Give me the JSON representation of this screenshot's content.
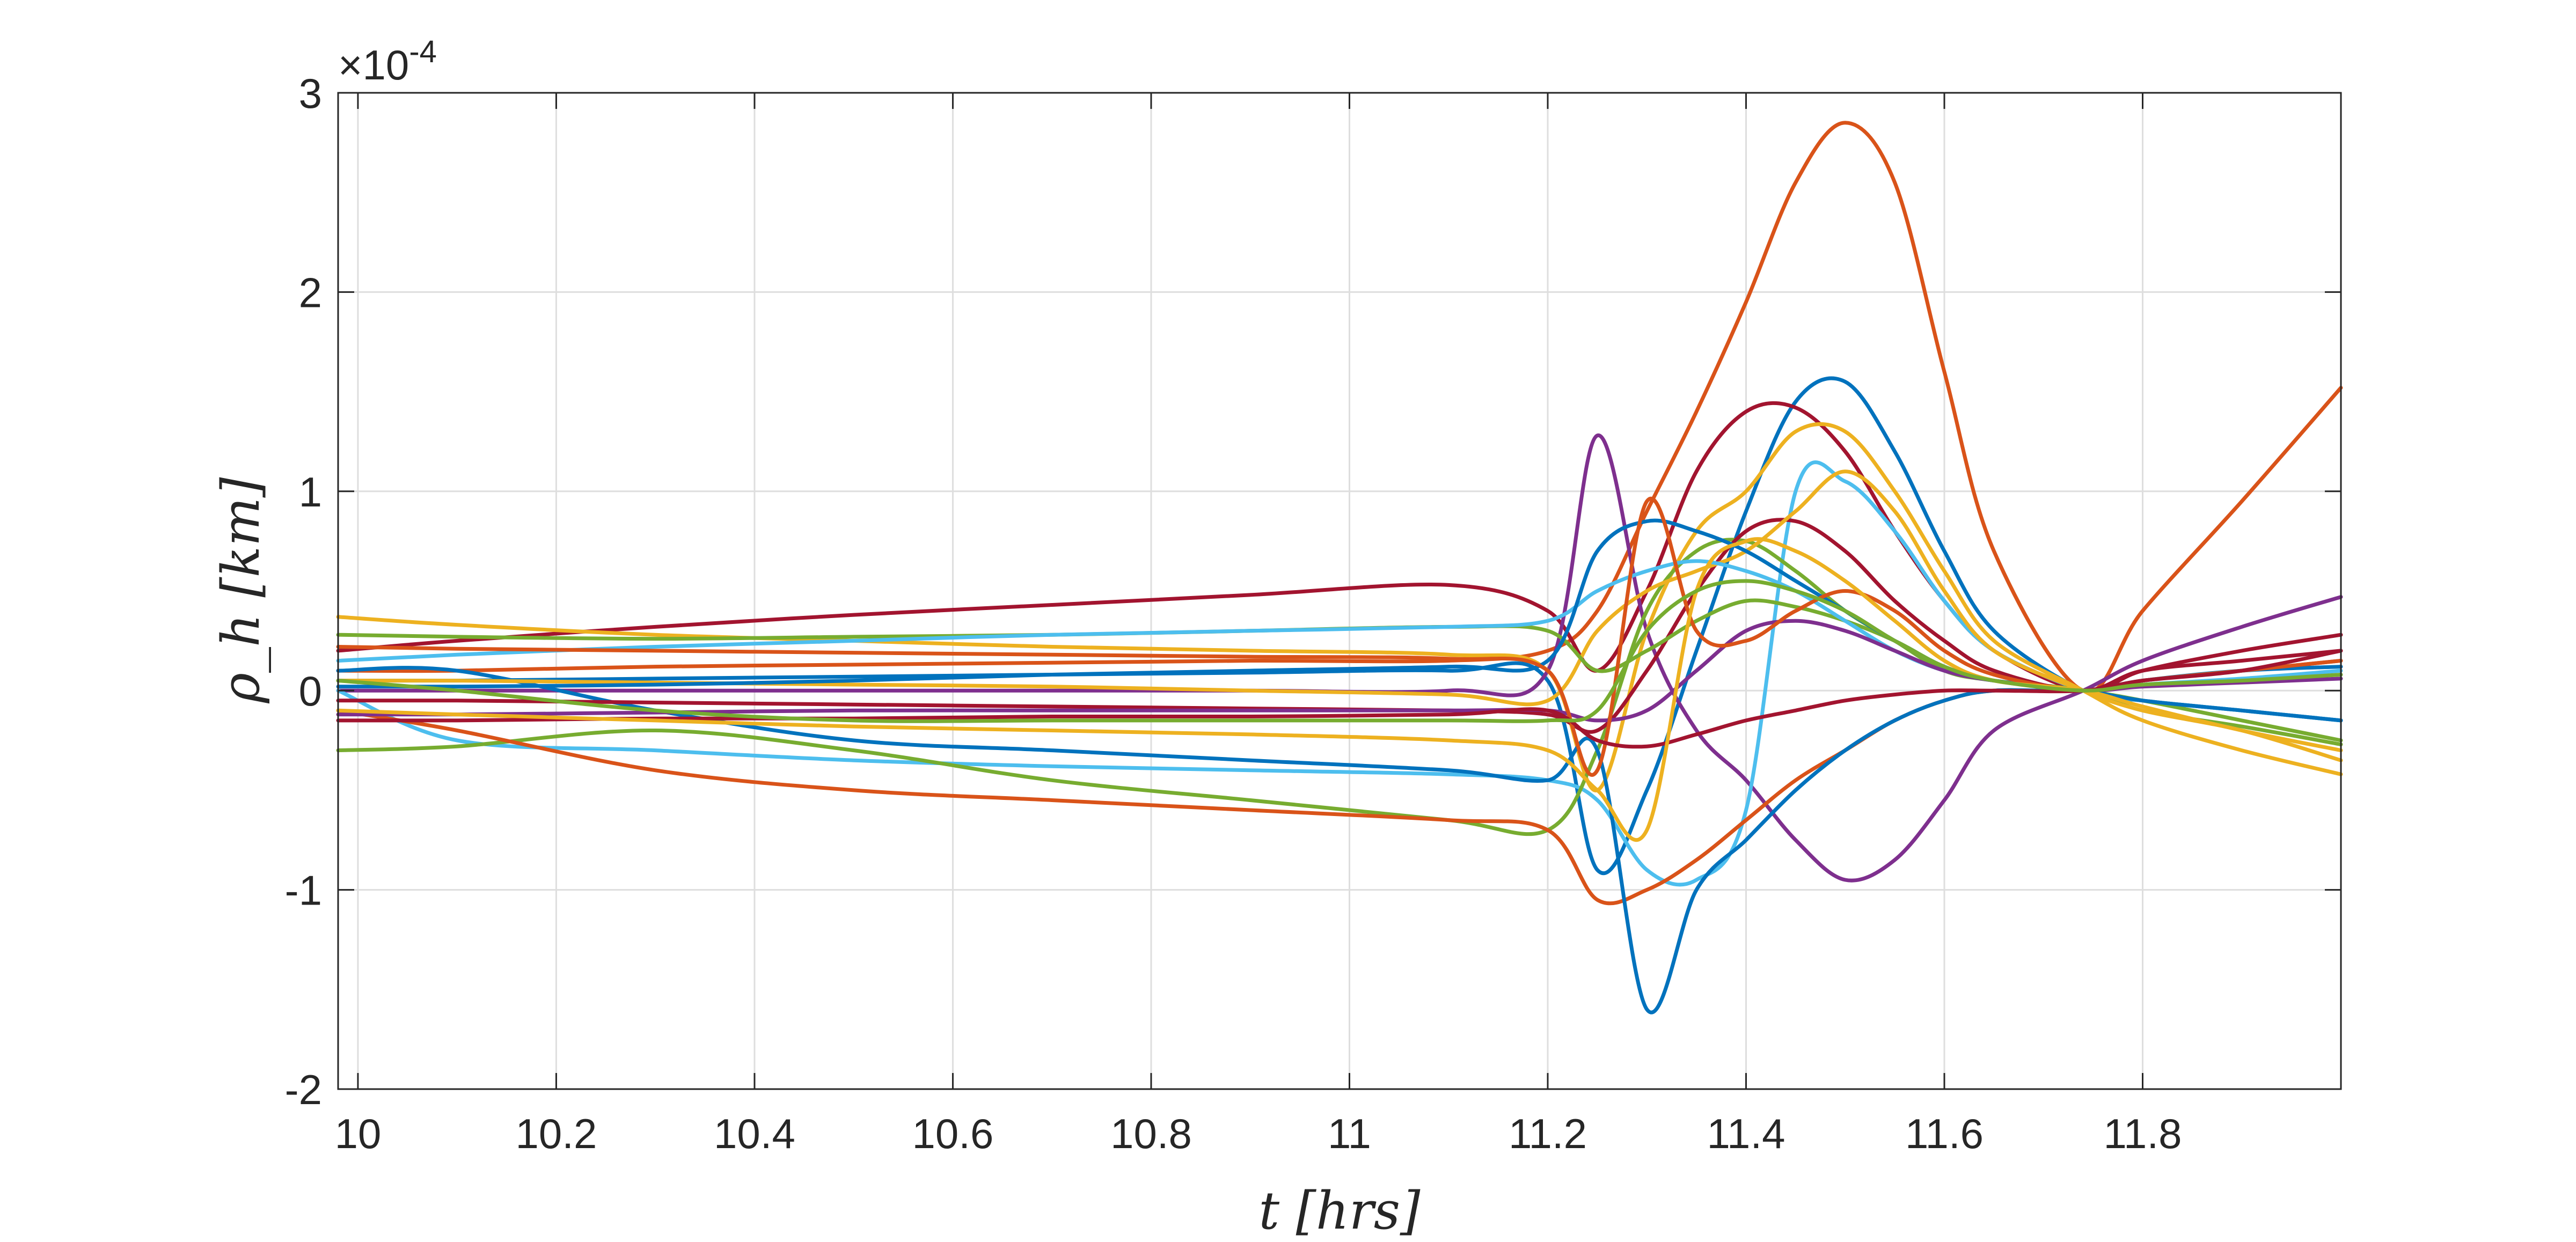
{
  "chart_data": {
    "type": "line",
    "title": "",
    "xlabel": "t [hrs]",
    "ylabel": "ρ_h [km]",
    "y_exponent_label": "×10^-4",
    "xlim": [
      9.98,
      12.0
    ],
    "ylim": [
      -2,
      3
    ],
    "grid": true,
    "x_ticks": [
      10,
      10.2,
      10.4,
      10.6,
      10.8,
      11,
      11.2,
      11.4,
      11.6,
      11.8
    ],
    "x_tick_labels": [
      "10",
      "10.2",
      "10.4",
      "10.6",
      "10.8",
      "11",
      "11.2",
      "11.4",
      "11.6",
      "11.8"
    ],
    "y_ticks": [
      -2,
      -1,
      0,
      1,
      2,
      3
    ],
    "y_tick_labels": [
      "-2",
      "-1",
      "0",
      "1",
      "2",
      "3"
    ],
    "x": [
      9.98,
      10.1,
      10.3,
      10.5,
      10.7,
      10.9,
      11.1,
      11.2,
      11.25,
      11.3,
      11.35,
      11.4,
      11.45,
      11.5,
      11.55,
      11.6,
      11.65,
      11.74,
      11.8,
      11.9,
      12.0
    ],
    "series": [
      {
        "color": "#D95319",
        "values": [
          0.1,
          0.1,
          0.12,
          0.13,
          0.14,
          0.15,
          0.15,
          0.2,
          0.4,
          0.9,
          1.4,
          1.95,
          2.55,
          2.85,
          2.55,
          1.6,
          0.7,
          0,
          0.4,
          0.95,
          1.52
        ]
      },
      {
        "color": "#0072BD",
        "values": [
          0.05,
          0.05,
          0.06,
          0.07,
          0.08,
          0.09,
          0.1,
          0.05,
          -0.9,
          -0.5,
          0.2,
          0.9,
          1.45,
          1.55,
          1.2,
          0.7,
          0.3,
          0,
          -0.05,
          -0.1,
          -0.15
        ]
      },
      {
        "color": "#A2142F",
        "values": [
          0.2,
          0.25,
          0.32,
          0.38,
          0.43,
          0.48,
          0.53,
          0.4,
          0.1,
          0.5,
          1.1,
          1.4,
          1.42,
          1.2,
          0.8,
          0.45,
          0.2,
          0,
          0.1,
          0.2,
          0.28
        ]
      },
      {
        "color": "#7E2F8E",
        "values": [
          0,
          0,
          0,
          0,
          0,
          0,
          0,
          0.1,
          1.28,
          0.3,
          -0.2,
          -0.45,
          -0.75,
          -0.95,
          -0.85,
          -0.55,
          -0.2,
          0,
          0.15,
          0.32,
          0.47
        ]
      },
      {
        "color": "#EDB120",
        "values": [
          0.37,
          0.33,
          0.28,
          0.25,
          0.22,
          0.2,
          0.18,
          0.1,
          -0.5,
          0.3,
          0.8,
          1.0,
          1.3,
          1.3,
          1.0,
          0.6,
          0.25,
          0,
          -0.15,
          -0.3,
          -0.42
        ]
      },
      {
        "color": "#4DBEEE",
        "values": [
          0,
          -0.25,
          -0.3,
          -0.35,
          -0.38,
          -0.4,
          -0.42,
          -0.45,
          -0.55,
          -0.9,
          -0.95,
          -0.6,
          1.0,
          1.05,
          0.8,
          0.45,
          0.2,
          0,
          -0.05,
          -0.1,
          -0.15
        ]
      },
      {
        "color": "#77AC30",
        "values": [
          -0.3,
          -0.28,
          -0.2,
          -0.3,
          -0.45,
          -0.55,
          -0.65,
          -0.7,
          -0.3,
          0.4,
          0.7,
          0.75,
          0.6,
          0.4,
          0.25,
          0.1,
          0.05,
          0,
          -0.1,
          -0.18,
          -0.27
        ]
      },
      {
        "color": "#D95319",
        "values": [
          -0.1,
          -0.2,
          -0.4,
          -0.5,
          -0.55,
          -0.6,
          -0.65,
          -0.7,
          -1.05,
          -1.0,
          -0.85,
          -0.65,
          -0.45,
          -0.3,
          -0.15,
          -0.05,
          0,
          0,
          0.05,
          0.1,
          0.15
        ]
      },
      {
        "color": "#0072BD",
        "values": [
          0.1,
          0.1,
          -0.1,
          -0.25,
          -0.3,
          -0.35,
          -0.4,
          -0.45,
          -0.3,
          -1.6,
          -1.0,
          -0.75,
          -0.5,
          -0.3,
          -0.15,
          -0.05,
          0,
          0,
          0.05,
          0.1,
          0.12
        ]
      },
      {
        "color": "#A2142F",
        "values": [
          -0.05,
          -0.05,
          -0.06,
          -0.07,
          -0.08,
          -0.09,
          -0.1,
          -0.12,
          -0.2,
          0.1,
          0.5,
          0.8,
          0.85,
          0.7,
          0.45,
          0.25,
          0.1,
          0,
          0.1,
          0.15,
          0.2
        ]
      },
      {
        "color": "#EDB120",
        "values": [
          0.05,
          0.05,
          0.04,
          0.03,
          0.02,
          0,
          -0.02,
          -0.05,
          0.3,
          0.5,
          0.6,
          0.7,
          0.9,
          1.1,
          0.9,
          0.5,
          0.2,
          0,
          -0.1,
          -0.2,
          -0.35
        ]
      },
      {
        "color": "#77AC30",
        "values": [
          0.28,
          0.27,
          0.26,
          0.27,
          0.28,
          0.3,
          0.32,
          0.3,
          0.1,
          0.2,
          0.35,
          0.45,
          0.42,
          0.35,
          0.25,
          0.12,
          0.05,
          0,
          -0.05,
          -0.15,
          -0.25
        ]
      },
      {
        "color": "#4DBEEE",
        "values": [
          0.15,
          0.18,
          0.22,
          0.25,
          0.28,
          0.3,
          0.32,
          0.35,
          0.5,
          0.6,
          0.65,
          0.6,
          0.5,
          0.35,
          0.2,
          0.1,
          0.05,
          0,
          0.03,
          0.06,
          0.1
        ]
      },
      {
        "color": "#7E2F8E",
        "values": [
          -0.12,
          -0.12,
          -0.11,
          -0.1,
          -0.1,
          -0.1,
          -0.1,
          -0.1,
          -0.15,
          -0.1,
          0.1,
          0.3,
          0.35,
          0.3,
          0.2,
          0.1,
          0.05,
          0,
          0.02,
          0.04,
          0.06
        ]
      },
      {
        "color": "#0072BD",
        "values": [
          0.02,
          0.02,
          0.03,
          0.05,
          0.08,
          0.1,
          0.12,
          0.15,
          0.7,
          0.85,
          0.8,
          0.7,
          0.55,
          0.4,
          0.25,
          0.12,
          0.05,
          0,
          -0.05,
          -0.1,
          -0.15
        ]
      },
      {
        "color": "#D95319",
        "values": [
          0.22,
          0.21,
          0.2,
          0.19,
          0.18,
          0.17,
          0.16,
          0.1,
          -0.4,
          0.95,
          0.3,
          0.25,
          0.4,
          0.5,
          0.4,
          0.2,
          0.08,
          0,
          0.05,
          0.1,
          0.15
        ]
      },
      {
        "color": "#A2142F",
        "values": [
          -0.15,
          -0.15,
          -0.14,
          -0.14,
          -0.13,
          -0.13,
          -0.12,
          -0.1,
          -0.25,
          -0.28,
          -0.22,
          -0.15,
          -0.1,
          -0.05,
          -0.02,
          0,
          0,
          0,
          0.05,
          0.1,
          0.2
        ]
      },
      {
        "color": "#EDB120",
        "values": [
          -0.1,
          -0.12,
          -0.15,
          -0.18,
          -0.2,
          -0.22,
          -0.25,
          -0.3,
          -0.5,
          -0.7,
          0.5,
          0.75,
          0.7,
          0.55,
          0.35,
          0.15,
          0.05,
          0,
          -0.08,
          -0.2,
          -0.3
        ]
      },
      {
        "color": "#77AC30",
        "values": [
          0.05,
          0,
          -0.1,
          -0.15,
          -0.15,
          -0.15,
          -0.15,
          -0.15,
          -0.1,
          0.3,
          0.5,
          0.55,
          0.5,
          0.4,
          0.25,
          0.12,
          0.05,
          0,
          0.03,
          0.05,
          0.08
        ]
      }
    ]
  }
}
